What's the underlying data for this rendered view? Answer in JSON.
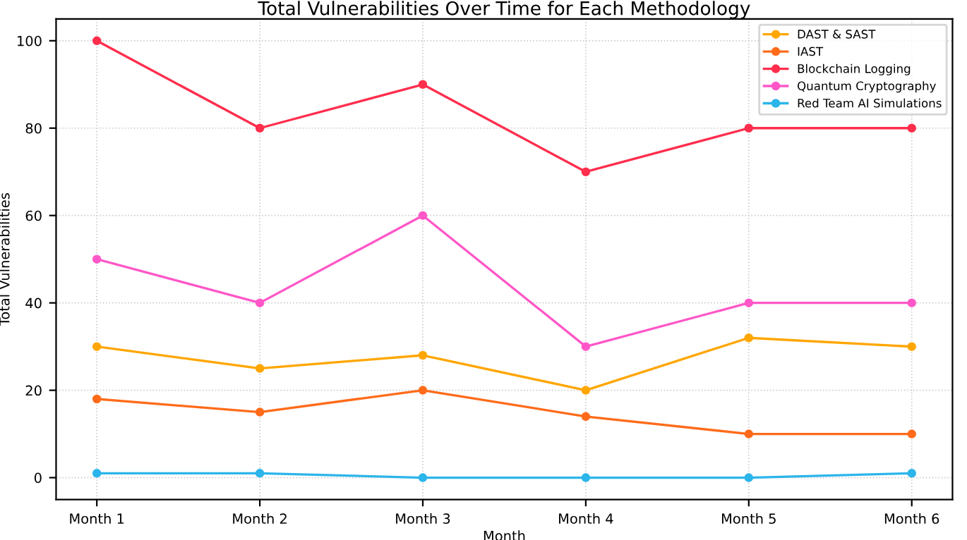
{
  "chart_data": {
    "type": "line",
    "title": "Total Vulnerabilities Over Time for Each Methodology",
    "xlabel": "Month",
    "ylabel": "Total Vulnerabilities",
    "categories": [
      "Month 1",
      "Month 2",
      "Month 3",
      "Month 4",
      "Month 5",
      "Month 6"
    ],
    "series": [
      {
        "name": "DAST & SAST",
        "color": "#ffa600",
        "values": [
          30,
          25,
          28,
          20,
          32,
          30
        ]
      },
      {
        "name": "IAST",
        "color": "#ff6b1a",
        "values": [
          18,
          15,
          20,
          14,
          10,
          10
        ]
      },
      {
        "name": "Blockchain Logging",
        "color": "#ff2e4d",
        "values": [
          100,
          80,
          90,
          70,
          80,
          80
        ]
      },
      {
        "name": "Quantum Cryptography",
        "color": "#ff57c8",
        "values": [
          50,
          40,
          60,
          30,
          40,
          40
        ]
      },
      {
        "name": "Red Team AI Simulations",
        "color": "#2bb5ea",
        "values": [
          1,
          1,
          0,
          0,
          0,
          1
        ]
      }
    ],
    "ylim": [
      -5,
      105
    ],
    "yticks": [
      0,
      20,
      40,
      60,
      80,
      100
    ],
    "grid": true,
    "legend": "top right",
    "marker": "circle",
    "line_style": "solid"
  }
}
